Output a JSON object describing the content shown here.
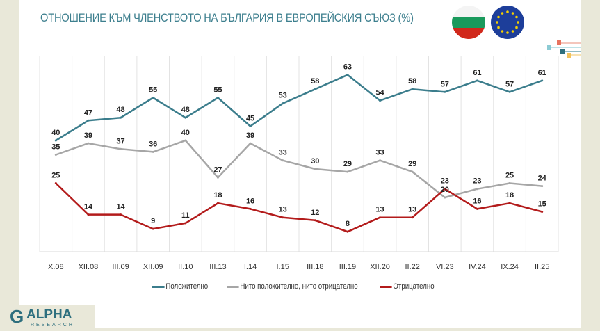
{
  "chart_data": {
    "type": "line",
    "title": "ОТНОШЕНИЕ КЪМ ЧЛЕНСТВОТО НА БЪЛГАРИЯ В ЕВРОПЕЙСКИЯ СЪЮЗ (%)",
    "categories": [
      "X.08",
      "XII.08",
      "III.09",
      "XII.09",
      "II.10",
      "III.13",
      "I.14",
      "I.15",
      "III.18",
      "III.19",
      "XII.20",
      "II.22",
      "VI.23",
      "IV.24",
      "IX.24",
      "II.25"
    ],
    "series": [
      {
        "name": "Положително",
        "color": "#3b7d8c",
        "values": [
          40,
          47,
          48,
          55,
          48,
          55,
          45,
          53,
          58,
          63,
          54,
          58,
          57,
          61,
          57,
          61
        ]
      },
      {
        "name": "Нито положително, нито отрицателно",
        "color": "#a6a6a6",
        "values": [
          35,
          39,
          37,
          36,
          40,
          27,
          39,
          33,
          30,
          29,
          33,
          29,
          20,
          23,
          25,
          24
        ]
      },
      {
        "name": "Отрицателно",
        "color": "#b31b1b",
        "values": [
          25,
          14,
          14,
          9,
          11,
          18,
          16,
          13,
          12,
          8,
          13,
          13,
          23,
          16,
          18,
          15
        ]
      }
    ],
    "ylim": [
      0,
      68
    ],
    "grid": "vertical",
    "legend_position": "bottom",
    "data_labels": true
  },
  "branding": {
    "logo": "ALPHA RESEARCH",
    "flags": [
      "bulgaria-flag",
      "eu-flag"
    ]
  }
}
